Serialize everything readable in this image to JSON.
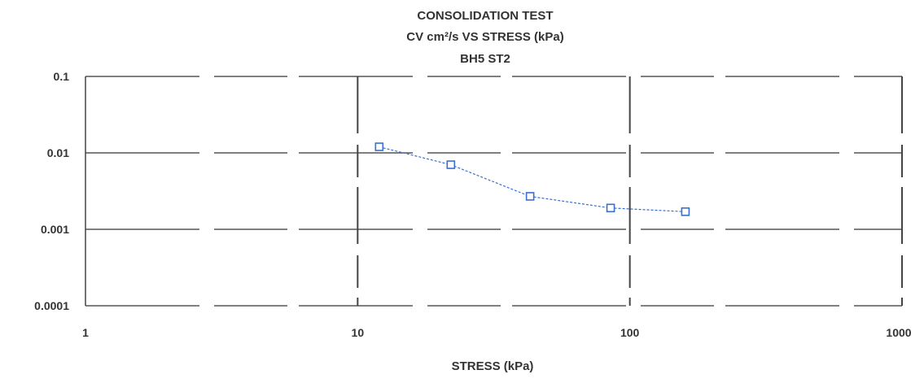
{
  "chart_data": {
    "type": "line",
    "title_lines": [
      "CONSOLIDATION TEST",
      "CV cm²/s VS  STRESS (kPa)",
      "BH5   ST2"
    ],
    "xlabel": "STRESS (kPa)",
    "ylabel": "",
    "x_scale": "log",
    "y_scale": "log",
    "xlim": [
      1,
      1000
    ],
    "ylim": [
      0.0001,
      0.1
    ],
    "x_ticks": [
      {
        "value": 1,
        "label": "1"
      },
      {
        "value": 10,
        "label": "10"
      },
      {
        "value": 100,
        "label": "100"
      },
      {
        "value": 1000,
        "label": "1000"
      }
    ],
    "y_ticks": [
      {
        "value": 0.1,
        "label": "0.1"
      },
      {
        "value": 0.01,
        "label": "0.01"
      },
      {
        "value": 0.001,
        "label": "0.001"
      },
      {
        "value": 0.0001,
        "label": "0.0001"
      }
    ],
    "grid": true,
    "series": [
      {
        "name": "",
        "color": "#3a6fcf",
        "marker": "square-open",
        "points": [
          {
            "x": 12,
            "y": 0.012
          },
          {
            "x": 22,
            "y": 0.007
          },
          {
            "x": 43,
            "y": 0.0027
          },
          {
            "x": 85,
            "y": 0.0019
          },
          {
            "x": 160,
            "y": 0.0017
          }
        ]
      }
    ]
  }
}
